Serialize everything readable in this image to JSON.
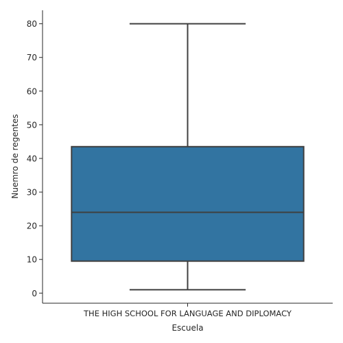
{
  "chart_data": {
    "type": "box",
    "title": "",
    "xlabel": "Escuela",
    "ylabel": "Nuemro de regentes",
    "categories": [
      "THE HIGH SCHOOL FOR LANGUAGE AND DIPLOMACY"
    ],
    "boxes": [
      {
        "category": "THE HIGH SCHOOL FOR LANGUAGE AND DIPLOMACY",
        "whisker_low": 1,
        "q1": 9.5,
        "median": 24,
        "q3": 43.5,
        "whisker_high": 80
      }
    ],
    "ylim": [
      -3,
      84
    ],
    "yticks": [
      0,
      10,
      20,
      30,
      40,
      50,
      60,
      70,
      80
    ],
    "grid": false,
    "legend": "none",
    "colors": {
      "box_fill": "#3274a1",
      "lines": "#3f3f3f",
      "axis": "#262626"
    }
  }
}
